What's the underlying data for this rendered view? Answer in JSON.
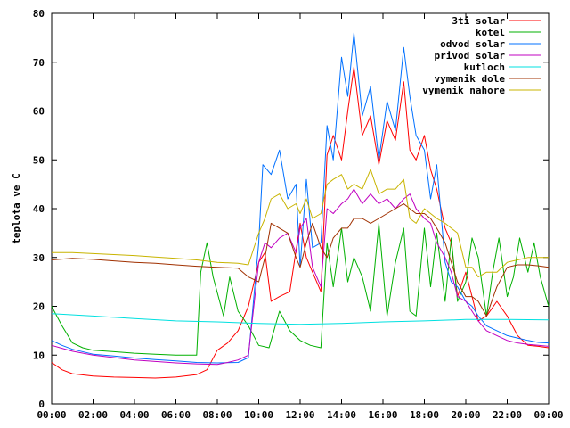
{
  "chart_data": {
    "type": "line",
    "title": "",
    "xlabel": "",
    "ylabel": "teplota ve C",
    "xlim": [
      0,
      24
    ],
    "ylim": [
      0,
      80
    ],
    "x_ticks": [
      "00:00",
      "02:00",
      "04:00",
      "06:00",
      "08:00",
      "10:00",
      "12:00",
      "14:00",
      "16:00",
      "18:00",
      "20:00",
      "22:00",
      "00:00"
    ],
    "y_ticks": [
      "0",
      "10",
      "20",
      "30",
      "40",
      "50",
      "60",
      "70",
      "80"
    ],
    "legend_position": "top-right",
    "grid": false,
    "series": [
      {
        "name": "3ti solar",
        "color": "#ff0000",
        "points": [
          [
            0,
            8.5
          ],
          [
            0.5,
            7
          ],
          [
            1,
            6.2
          ],
          [
            2,
            5.7
          ],
          [
            3,
            5.5
          ],
          [
            4,
            5.4
          ],
          [
            5,
            5.3
          ],
          [
            6,
            5.5
          ],
          [
            7,
            6
          ],
          [
            7.5,
            7
          ],
          [
            8,
            11
          ],
          [
            8.5,
            12.5
          ],
          [
            9,
            15
          ],
          [
            9.5,
            20
          ],
          [
            10,
            29
          ],
          [
            10.3,
            31
          ],
          [
            10.6,
            21
          ],
          [
            11,
            22
          ],
          [
            11.5,
            23
          ],
          [
            12,
            37
          ],
          [
            12.3,
            30
          ],
          [
            12.6,
            27
          ],
          [
            13,
            23
          ],
          [
            13.3,
            51
          ],
          [
            13.6,
            55
          ],
          [
            14,
            50
          ],
          [
            14.3,
            60
          ],
          [
            14.6,
            69
          ],
          [
            15,
            55
          ],
          [
            15.4,
            59
          ],
          [
            15.8,
            49
          ],
          [
            16.2,
            58
          ],
          [
            16.6,
            54
          ],
          [
            17,
            66
          ],
          [
            17.3,
            52
          ],
          [
            17.6,
            50
          ],
          [
            18,
            55
          ],
          [
            18.3,
            48
          ],
          [
            18.6,
            44
          ],
          [
            19,
            36
          ],
          [
            19.3,
            33
          ],
          [
            19.6,
            22
          ],
          [
            20,
            27
          ],
          [
            20.3,
            22
          ],
          [
            20.6,
            17
          ],
          [
            21,
            18
          ],
          [
            21.5,
            21
          ],
          [
            22,
            18
          ],
          [
            22.5,
            14
          ],
          [
            23,
            12
          ],
          [
            23.5,
            11.8
          ],
          [
            24,
            11.5
          ]
        ]
      },
      {
        "name": "kotel",
        "color": "#00b000",
        "points": [
          [
            0,
            20
          ],
          [
            0.5,
            16
          ],
          [
            1,
            12.5
          ],
          [
            1.5,
            11.5
          ],
          [
            2,
            11
          ],
          [
            3,
            10.7
          ],
          [
            4,
            10.4
          ],
          [
            5,
            10.2
          ],
          [
            6,
            10
          ],
          [
            7,
            10
          ],
          [
            7.2,
            27
          ],
          [
            7.5,
            33
          ],
          [
            7.8,
            26
          ],
          [
            8.3,
            18
          ],
          [
            8.6,
            26
          ],
          [
            9,
            19
          ],
          [
            9.5,
            16
          ],
          [
            10,
            12
          ],
          [
            10.5,
            11.5
          ],
          [
            11,
            19
          ],
          [
            11.5,
            15
          ],
          [
            12,
            13
          ],
          [
            12.5,
            12
          ],
          [
            13,
            11.5
          ],
          [
            13.3,
            33
          ],
          [
            13.6,
            24
          ],
          [
            14,
            36
          ],
          [
            14.3,
            25
          ],
          [
            14.6,
            30
          ],
          [
            15,
            26
          ],
          [
            15.4,
            19
          ],
          [
            15.8,
            37
          ],
          [
            16.2,
            18
          ],
          [
            16.6,
            29
          ],
          [
            17,
            36
          ],
          [
            17.3,
            19
          ],
          [
            17.6,
            18
          ],
          [
            18,
            36
          ],
          [
            18.3,
            24
          ],
          [
            18.6,
            35
          ],
          [
            19,
            21
          ],
          [
            19.3,
            34
          ],
          [
            19.6,
            21
          ],
          [
            20,
            25
          ],
          [
            20.3,
            34
          ],
          [
            20.6,
            30
          ],
          [
            21,
            18
          ],
          [
            21.3,
            27
          ],
          [
            21.6,
            34
          ],
          [
            22,
            22
          ],
          [
            22.3,
            26
          ],
          [
            22.6,
            34
          ],
          [
            23,
            27
          ],
          [
            23.3,
            33
          ],
          [
            23.6,
            26
          ],
          [
            24,
            20
          ]
        ]
      },
      {
        "name": "odvod solar",
        "color": "#0070ff",
        "points": [
          [
            0,
            13
          ],
          [
            0.5,
            12
          ],
          [
            1,
            11.2
          ],
          [
            2,
            10.2
          ],
          [
            3,
            9.8
          ],
          [
            4,
            9.4
          ],
          [
            5,
            9.1
          ],
          [
            6,
            8.8
          ],
          [
            7,
            8.5
          ],
          [
            8,
            8.4
          ],
          [
            9,
            8.5
          ],
          [
            9.5,
            9.5
          ],
          [
            10,
            33
          ],
          [
            10.2,
            49
          ],
          [
            10.6,
            47
          ],
          [
            11,
            52
          ],
          [
            11.4,
            42
          ],
          [
            11.8,
            45
          ],
          [
            12,
            28
          ],
          [
            12.3,
            46
          ],
          [
            12.6,
            32
          ],
          [
            13,
            33
          ],
          [
            13.3,
            57
          ],
          [
            13.6,
            50
          ],
          [
            14,
            71
          ],
          [
            14.3,
            63
          ],
          [
            14.6,
            76
          ],
          [
            15,
            59
          ],
          [
            15.4,
            65
          ],
          [
            15.8,
            50
          ],
          [
            16.2,
            62
          ],
          [
            16.6,
            56
          ],
          [
            17,
            73
          ],
          [
            17.3,
            63
          ],
          [
            17.6,
            55
          ],
          [
            18,
            52
          ],
          [
            18.3,
            42
          ],
          [
            18.6,
            49
          ],
          [
            19,
            29
          ],
          [
            19.3,
            25
          ],
          [
            19.6,
            24
          ],
          [
            20,
            21
          ],
          [
            20.3,
            20
          ],
          [
            20.6,
            18
          ],
          [
            21,
            16
          ],
          [
            21.5,
            15
          ],
          [
            22,
            14
          ],
          [
            22.5,
            13.5
          ],
          [
            23,
            13
          ],
          [
            23.5,
            12.6
          ],
          [
            24,
            12.5
          ]
        ]
      },
      {
        "name": "privod solar",
        "color": "#c000c0",
        "points": [
          [
            0,
            12
          ],
          [
            0.5,
            11.4
          ],
          [
            1,
            10.8
          ],
          [
            2,
            10
          ],
          [
            3,
            9.5
          ],
          [
            4,
            9
          ],
          [
            5,
            8.7
          ],
          [
            6,
            8.4
          ],
          [
            7,
            8.2
          ],
          [
            8,
            8.1
          ],
          [
            8.5,
            8.5
          ],
          [
            9,
            9
          ],
          [
            9.5,
            10
          ],
          [
            10,
            29
          ],
          [
            10.3,
            33
          ],
          [
            10.6,
            32
          ],
          [
            11,
            34
          ],
          [
            11.4,
            35
          ],
          [
            11.8,
            31
          ],
          [
            12,
            36
          ],
          [
            12.3,
            38
          ],
          [
            12.6,
            28
          ],
          [
            13,
            24
          ],
          [
            13.3,
            40
          ],
          [
            13.6,
            39
          ],
          [
            14,
            41
          ],
          [
            14.3,
            42
          ],
          [
            14.6,
            44
          ],
          [
            15,
            41
          ],
          [
            15.4,
            43
          ],
          [
            15.8,
            41
          ],
          [
            16.2,
            42
          ],
          [
            16.6,
            40
          ],
          [
            17,
            42
          ],
          [
            17.3,
            43
          ],
          [
            17.6,
            40
          ],
          [
            18,
            38
          ],
          [
            18.3,
            37
          ],
          [
            18.6,
            33
          ],
          [
            19,
            30
          ],
          [
            19.3,
            27
          ],
          [
            19.6,
            22
          ],
          [
            20,
            21
          ],
          [
            20.3,
            19
          ],
          [
            20.6,
            17
          ],
          [
            21,
            15
          ],
          [
            21.5,
            14
          ],
          [
            22,
            13
          ],
          [
            22.5,
            12.5
          ],
          [
            23,
            12.2
          ],
          [
            23.5,
            12
          ],
          [
            24,
            11.8
          ]
        ]
      },
      {
        "name": "kutloch",
        "color": "#00e0e0",
        "points": [
          [
            0,
            18.5
          ],
          [
            2,
            18
          ],
          [
            4,
            17.5
          ],
          [
            6,
            17
          ],
          [
            8,
            16.8
          ],
          [
            10,
            16.5
          ],
          [
            12,
            16.3
          ],
          [
            14,
            16.5
          ],
          [
            16,
            16.8
          ],
          [
            18,
            17
          ],
          [
            20,
            17.3
          ],
          [
            22,
            17.3
          ],
          [
            24,
            17.2
          ]
        ]
      },
      {
        "name": "vymenik dole",
        "color": "#a03000",
        "points": [
          [
            0,
            29.5
          ],
          [
            1,
            29.8
          ],
          [
            2,
            29.6
          ],
          [
            3,
            29.3
          ],
          [
            4,
            29
          ],
          [
            5,
            28.8
          ],
          [
            6,
            28.5
          ],
          [
            7,
            28.2
          ],
          [
            8,
            28
          ],
          [
            9,
            27.8
          ],
          [
            9.5,
            26
          ],
          [
            10,
            25
          ],
          [
            10.3,
            30
          ],
          [
            10.6,
            37
          ],
          [
            11,
            36
          ],
          [
            11.4,
            35
          ],
          [
            11.8,
            30
          ],
          [
            12,
            28
          ],
          [
            12.3,
            33
          ],
          [
            12.6,
            37
          ],
          [
            13,
            32
          ],
          [
            13.3,
            30
          ],
          [
            13.6,
            34
          ],
          [
            14,
            36
          ],
          [
            14.3,
            36
          ],
          [
            14.6,
            38
          ],
          [
            15,
            38
          ],
          [
            15.4,
            37
          ],
          [
            15.8,
            38
          ],
          [
            16.2,
            39
          ],
          [
            16.6,
            40
          ],
          [
            17,
            41
          ],
          [
            17.3,
            40
          ],
          [
            17.6,
            39
          ],
          [
            18,
            39
          ],
          [
            18.3,
            38
          ],
          [
            18.6,
            36
          ],
          [
            19,
            33
          ],
          [
            19.3,
            29
          ],
          [
            19.6,
            25
          ],
          [
            20,
            22
          ],
          [
            20.3,
            22
          ],
          [
            20.6,
            21
          ],
          [
            21,
            18
          ],
          [
            21.5,
            24
          ],
          [
            22,
            28
          ],
          [
            22.5,
            28.5
          ],
          [
            23,
            28.5
          ],
          [
            23.5,
            28.3
          ],
          [
            24,
            28
          ]
        ]
      },
      {
        "name": "vymenik nahore",
        "color": "#c8b400",
        "points": [
          [
            0,
            31
          ],
          [
            1,
            31
          ],
          [
            2,
            30.8
          ],
          [
            3,
            30.6
          ],
          [
            4,
            30.4
          ],
          [
            5,
            30.1
          ],
          [
            6,
            29.8
          ],
          [
            7,
            29.5
          ],
          [
            8,
            29
          ],
          [
            9,
            28.8
          ],
          [
            9.5,
            28.5
          ],
          [
            10,
            35
          ],
          [
            10.3,
            38
          ],
          [
            10.6,
            42
          ],
          [
            11,
            43
          ],
          [
            11.4,
            40
          ],
          [
            11.8,
            41
          ],
          [
            12,
            39
          ],
          [
            12.3,
            42
          ],
          [
            12.6,
            38
          ],
          [
            13,
            39
          ],
          [
            13.3,
            45
          ],
          [
            13.6,
            46
          ],
          [
            14,
            47
          ],
          [
            14.3,
            44
          ],
          [
            14.6,
            45
          ],
          [
            15,
            44
          ],
          [
            15.4,
            48
          ],
          [
            15.8,
            43
          ],
          [
            16.2,
            44
          ],
          [
            16.6,
            44
          ],
          [
            17,
            46
          ],
          [
            17.3,
            38
          ],
          [
            17.6,
            37
          ],
          [
            18,
            40
          ],
          [
            18.3,
            39
          ],
          [
            18.6,
            38
          ],
          [
            19,
            37
          ],
          [
            19.3,
            36
          ],
          [
            19.6,
            35
          ],
          [
            20,
            28
          ],
          [
            20.3,
            28
          ],
          [
            20.6,
            26
          ],
          [
            21,
            27
          ],
          [
            21.5,
            27
          ],
          [
            22,
            29
          ],
          [
            22.5,
            29.5
          ],
          [
            23,
            30
          ],
          [
            23.5,
            30
          ],
          [
            24,
            30
          ]
        ]
      }
    ]
  }
}
